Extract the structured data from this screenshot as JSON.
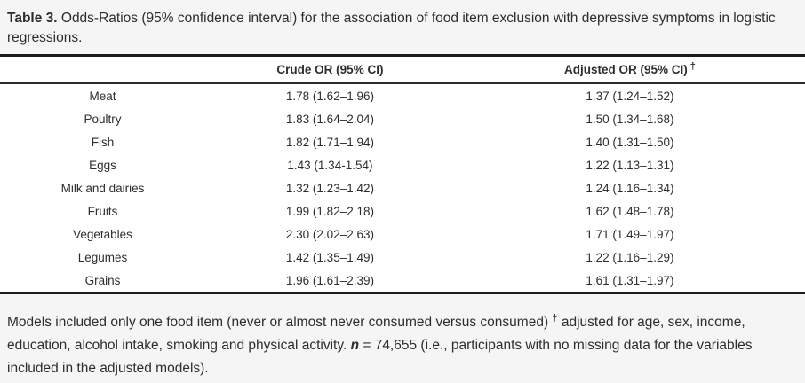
{
  "title": {
    "label": "Table 3.",
    "text": " Odds-Ratios (95% confidence interval) for the association of food item exclusion with depressive symptoms in logistic regressions."
  },
  "table": {
    "header": {
      "item_col": "",
      "crude": "Crude OR (95% CI)",
      "adjusted": "Adjusted OR (95% CI)",
      "dagger": "†"
    },
    "rows": [
      {
        "item": "Meat",
        "crude": "1.78 (1.62–1.96)",
        "adjusted": "1.37 (1.24–1.52)"
      },
      {
        "item": "Poultry",
        "crude": "1.83 (1.64–2.04)",
        "adjusted": "1.50 (1.34–1.68)"
      },
      {
        "item": "Fish",
        "crude": "1.82 (1.71–1.94)",
        "adjusted": "1.40 (1.31–1.50)"
      },
      {
        "item": "Eggs",
        "crude": "1.43 (1.34-1.54)",
        "adjusted": "1.22 (1.13–1.31)"
      },
      {
        "item": "Milk and dairies",
        "crude": "1.32 (1.23–1.42)",
        "adjusted": "1.24 (1.16–1.34)"
      },
      {
        "item": "Fruits",
        "crude": "1.99 (1.82–2.18)",
        "adjusted": "1.62 (1.48–1.78)"
      },
      {
        "item": "Vegetables",
        "crude": "2.30 (2.02–2.63)",
        "adjusted": "1.71 (1.49–1.97)"
      },
      {
        "item": "Legumes",
        "crude": "1.42 (1.35–1.49)",
        "adjusted": "1.22 (1.16–1.29)"
      },
      {
        "item": "Grains",
        "crude": "1.96 (1.61–2.39)",
        "adjusted": "1.61 (1.31–1.97)"
      }
    ]
  },
  "footnote": {
    "part1": "Models included only one food item (never or almost never consumed versus consumed) ",
    "dagger": "†",
    "part2": " adjusted for age, sex, income, education, alcohol intake, smoking and physical activity. ",
    "n_symbol": "n",
    "part3": " = 74,655 (i.e., participants with no missing data for the variables included in the adjusted models)."
  },
  "colors": {
    "background": "#f5f5f5",
    "table_background": "#ffffff",
    "text": "#2d2d2d",
    "border_heavy": "#1c1c1c",
    "border_thin": "#2a2a2a"
  }
}
